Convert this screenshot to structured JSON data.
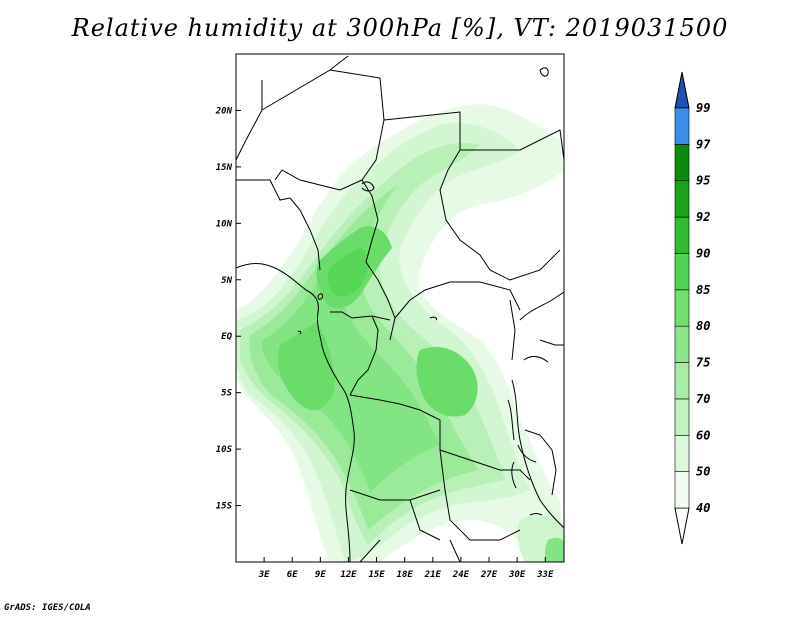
{
  "title": "Relative humidity at 300hPa [%], VT: 2019031500",
  "credit": "GrADS: IGES/COLA",
  "map": {
    "lon_range": [
      0,
      35
    ],
    "lat_range": [
      -20,
      25
    ],
    "lon_ticks": [
      {
        "value": 3,
        "label": "3E"
      },
      {
        "value": 6,
        "label": "6E"
      },
      {
        "value": 9,
        "label": "9E"
      },
      {
        "value": 12,
        "label": "12E"
      },
      {
        "value": 15,
        "label": "15E"
      },
      {
        "value": 18,
        "label": "18E"
      },
      {
        "value": 21,
        "label": "21E"
      },
      {
        "value": 24,
        "label": "24E"
      },
      {
        "value": 27,
        "label": "27E"
      },
      {
        "value": 30,
        "label": "30E"
      },
      {
        "value": 33,
        "label": "33E"
      }
    ],
    "lat_ticks": [
      {
        "value": 20,
        "label": "20N"
      },
      {
        "value": 15,
        "label": "15N"
      },
      {
        "value": 10,
        "label": "10N"
      },
      {
        "value": 5,
        "label": "5N"
      },
      {
        "value": 0,
        "label": "EQ"
      },
      {
        "value": -5,
        "label": "5S"
      },
      {
        "value": -10,
        "label": "10S"
      },
      {
        "value": -15,
        "label": "15S"
      }
    ]
  },
  "colorbar": {
    "levels": [
      {
        "label": "40",
        "color": "#f0fcf0"
      },
      {
        "label": "50",
        "color": "#dcf8dc"
      },
      {
        "label": "60",
        "color": "#c2f2c2"
      },
      {
        "label": "70",
        "color": "#a8eca8"
      },
      {
        "label": "75",
        "color": "#8ce68c"
      },
      {
        "label": "80",
        "color": "#6fdf6f"
      },
      {
        "label": "85",
        "color": "#50d350"
      },
      {
        "label": "90",
        "color": "#30bb30"
      },
      {
        "label": "92",
        "color": "#1aa21a"
      },
      {
        "label": "95",
        "color": "#0a8c0a"
      },
      {
        "label": "97",
        "color": "#3a8ee6"
      },
      {
        "label": "99",
        "color": "#1e64d2"
      }
    ],
    "top_color": "#2050b0",
    "bottom_color": "#ffffff"
  }
}
